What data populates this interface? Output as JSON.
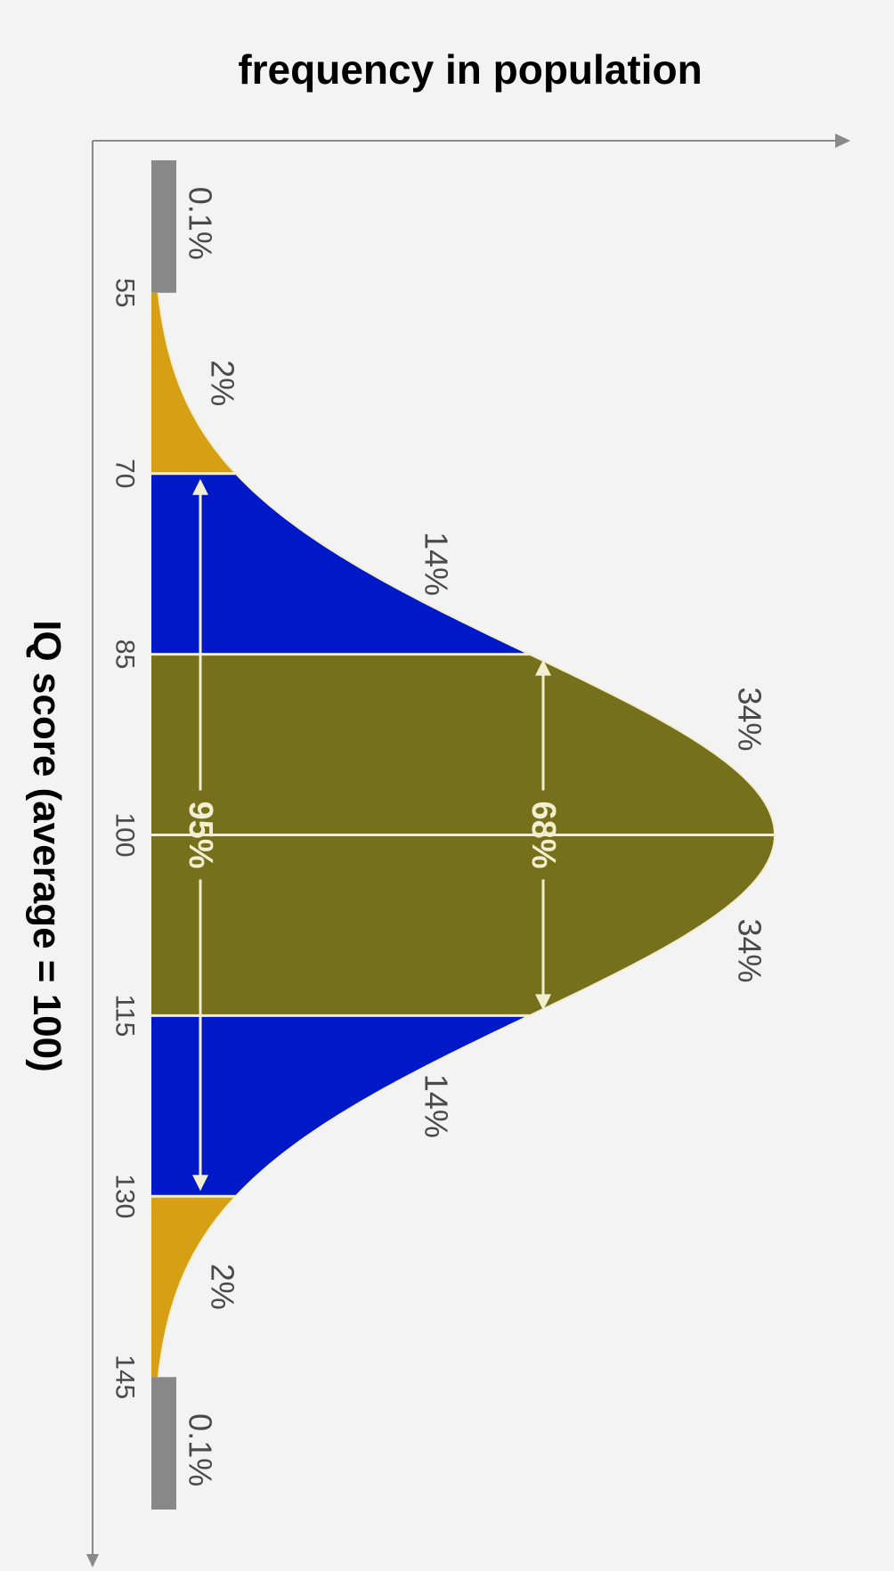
{
  "chart_data": {
    "type": "area",
    "title": "frequency in population",
    "xlabel": "IQ score (average = 100)",
    "ylabel": "",
    "mean": 100,
    "sd": 15,
    "xlim": [
      44,
      156
    ],
    "ticks": [
      55,
      70,
      85,
      100,
      115,
      130,
      145
    ],
    "tick_labels": [
      "55",
      "70",
      "85",
      "100",
      "115",
      "130",
      "145"
    ],
    "colors": {
      "tail": "#888888",
      "two_sd": "#d69f14",
      "one_to_two_sd": "#0019c8",
      "within_one_sd": "#766f1c",
      "axis": "#888888",
      "span_arrow": "#f2eed0"
    },
    "bands": [
      {
        "from": 44,
        "to": 55,
        "label": "0.1%",
        "color_key": "tail"
      },
      {
        "from": 55,
        "to": 70,
        "label": "2%",
        "color_key": "two_sd"
      },
      {
        "from": 70,
        "to": 85,
        "label": "14%",
        "color_key": "one_to_two_sd"
      },
      {
        "from": 85,
        "to": 100,
        "label": "34%",
        "color_key": "within_one_sd"
      },
      {
        "from": 100,
        "to": 115,
        "label": "34%",
        "color_key": "within_one_sd"
      },
      {
        "from": 115,
        "to": 130,
        "label": "14%",
        "color_key": "one_to_two_sd"
      },
      {
        "from": 130,
        "to": 145,
        "label": "2%",
        "color_key": "two_sd"
      },
      {
        "from": 145,
        "to": 156,
        "label": "0.1%",
        "color_key": "tail"
      }
    ],
    "spans": [
      {
        "from": 85,
        "to": 115,
        "label": "68%"
      },
      {
        "from": 70,
        "to": 130,
        "label": "95%"
      }
    ]
  }
}
